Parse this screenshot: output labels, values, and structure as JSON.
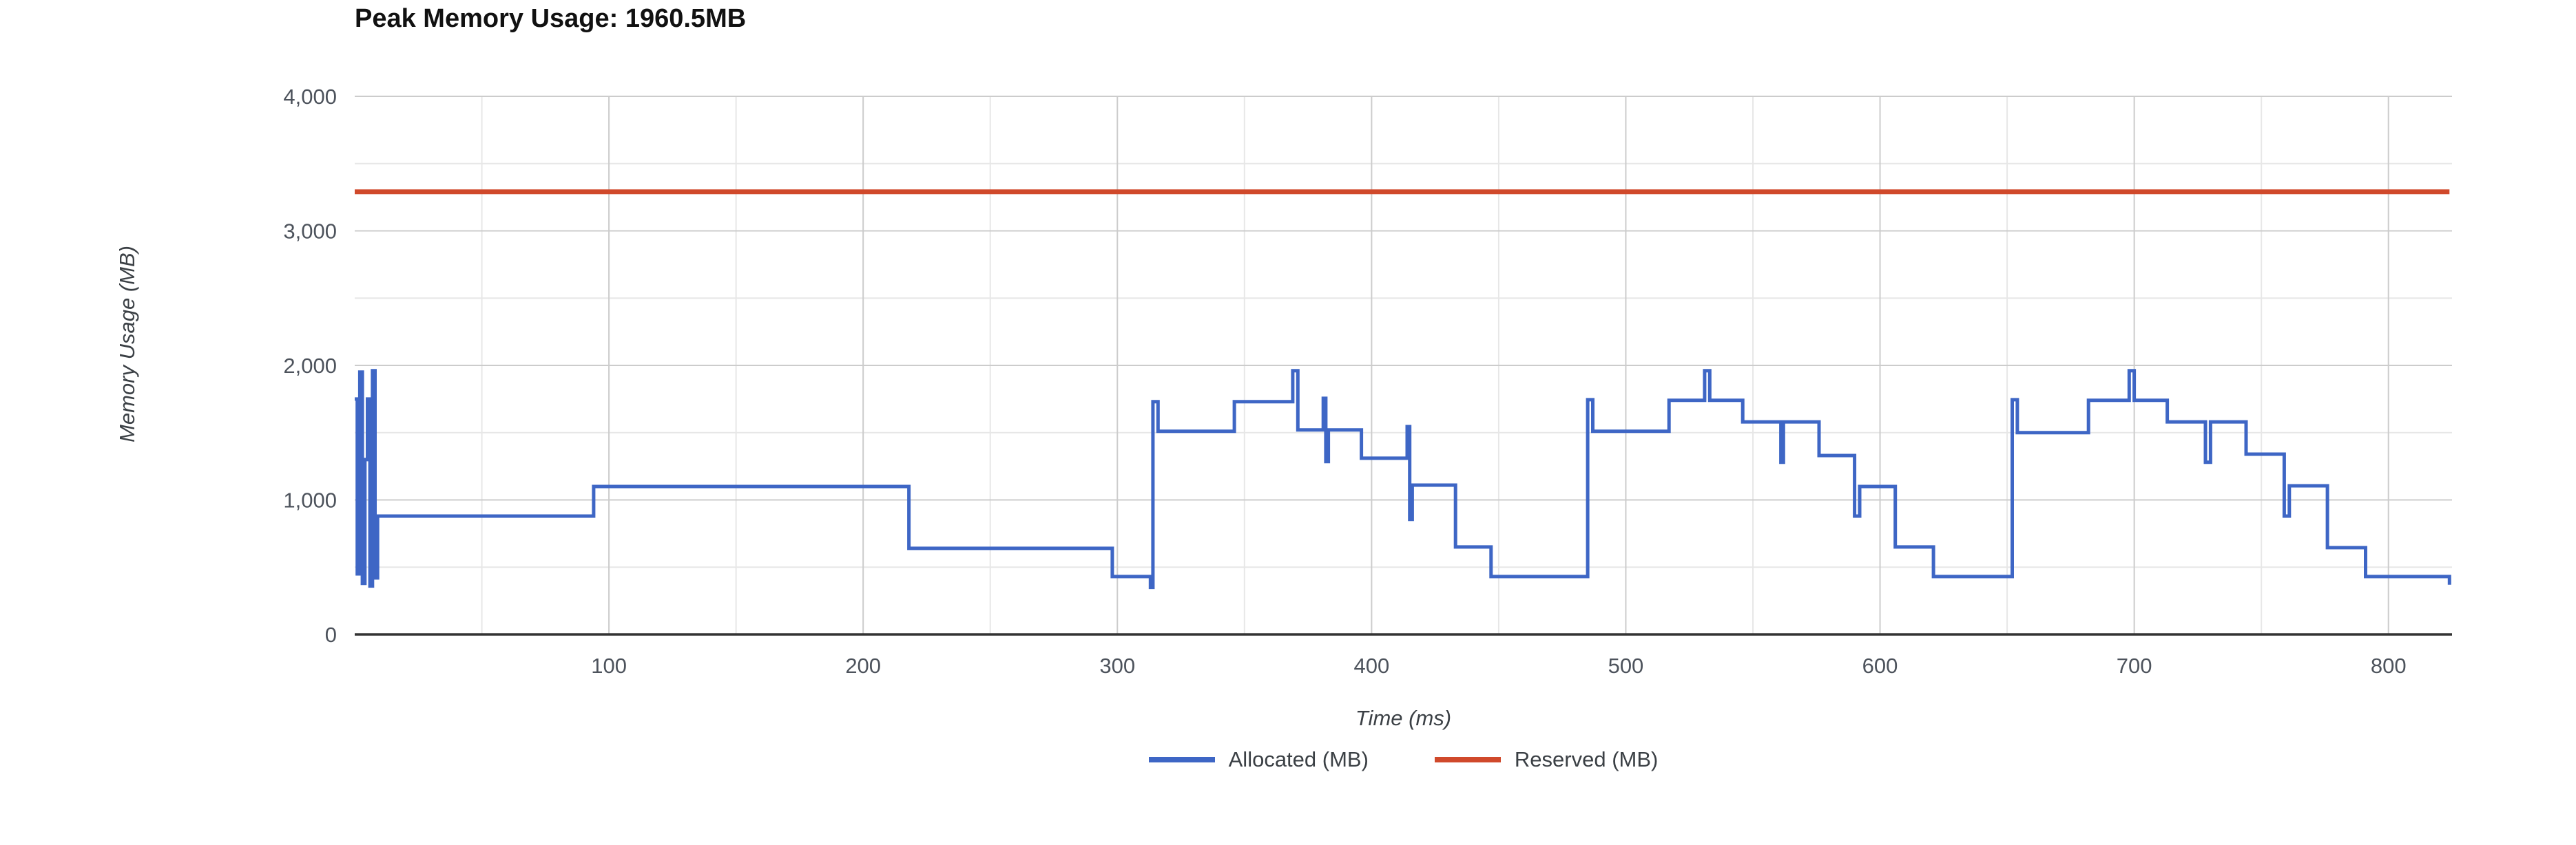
{
  "title": "Peak Memory Usage: 1960.5MB",
  "colors": {
    "allocated": "#3e66c5",
    "reserved": "#d0492b",
    "grid_major": "#cccccc",
    "grid_minor": "#e7e7e7",
    "axis_line": "#333333",
    "tick_text": "#4d535c",
    "axis_title_text": "#3b4045",
    "title_text": "#111111",
    "legend_text": "#3b4045",
    "background": "#ffffff"
  },
  "chart_data": {
    "type": "line",
    "step_mode": "step-after",
    "title": "Peak Memory Usage: 1960.5MB",
    "peak_mb": 1960.5,
    "xlabel": "Time (ms)",
    "ylabel": "Memory Usage (MB)",
    "xlim": [
      0,
      825
    ],
    "ylim": [
      0,
      4000
    ],
    "grid": true,
    "legend_position": "bottom",
    "x_major_ticks": [
      100,
      200,
      300,
      400,
      500,
      600,
      700,
      800
    ],
    "x_tick_labels": [
      "100",
      "200",
      "300",
      "400",
      "500",
      "600",
      "700",
      "800"
    ],
    "x_minor_ticks": [
      50,
      150,
      250,
      350,
      450,
      550,
      650,
      750
    ],
    "y_major_ticks": [
      0,
      1000,
      2000,
      3000,
      4000
    ],
    "y_tick_labels": [
      "0",
      "1,000",
      "2,000",
      "3,000",
      "4,000"
    ],
    "y_minor_ticks": [
      500,
      1500,
      2500,
      3500
    ],
    "series": [
      {
        "name": "Allocated (MB)",
        "color": "#3e66c5",
        "stroke_width": 5,
        "points": [
          [
            0,
            1750
          ],
          [
            1,
            450
          ],
          [
            2,
            1950
          ],
          [
            3,
            380
          ],
          [
            4,
            1300
          ],
          [
            5,
            1750
          ],
          [
            6,
            360
          ],
          [
            7,
            1960
          ],
          [
            8,
            420
          ],
          [
            9,
            880
          ],
          [
            94,
            1100
          ],
          [
            218,
            640
          ],
          [
            298,
            430
          ],
          [
            313,
            350
          ],
          [
            314,
            1730
          ],
          [
            316,
            1510
          ],
          [
            346,
            1730
          ],
          [
            369,
            1960
          ],
          [
            371,
            1520
          ],
          [
            381,
            1755
          ],
          [
            382,
            1285
          ],
          [
            383,
            1520
          ],
          [
            396,
            1310
          ],
          [
            414,
            1545
          ],
          [
            415,
            855
          ],
          [
            416,
            1110
          ],
          [
            433,
            650
          ],
          [
            447,
            430
          ],
          [
            485,
            1745
          ],
          [
            487,
            1510
          ],
          [
            517,
            1740
          ],
          [
            531,
            1960
          ],
          [
            533,
            1740
          ],
          [
            546,
            1580
          ],
          [
            561,
            1280
          ],
          [
            562,
            1580
          ],
          [
            576,
            1330
          ],
          [
            590,
            880
          ],
          [
            592,
            1100
          ],
          [
            606,
            650
          ],
          [
            621,
            430
          ],
          [
            652,
            1745
          ],
          [
            654,
            1500
          ],
          [
            682,
            1740
          ],
          [
            698,
            1960
          ],
          [
            700,
            1740
          ],
          [
            713,
            1580
          ],
          [
            728,
            1280
          ],
          [
            730,
            1580
          ],
          [
            744,
            1340
          ],
          [
            759,
            880
          ],
          [
            761,
            1105
          ],
          [
            776,
            645
          ],
          [
            791,
            430
          ],
          [
            824,
            370
          ]
        ]
      },
      {
        "name": "Reserved (MB)",
        "color": "#d0492b",
        "stroke_width": 7,
        "points": [
          [
            0,
            3290
          ],
          [
            824,
            3290
          ]
        ]
      }
    ]
  }
}
